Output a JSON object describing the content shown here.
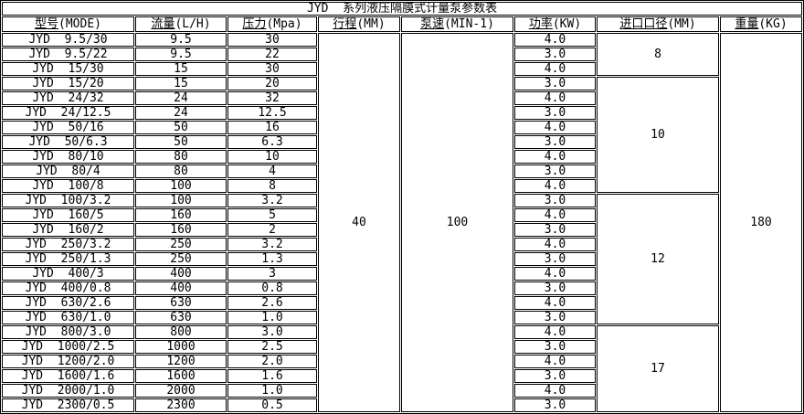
{
  "table": {
    "title": "JYD  系列液压隔膜式计量泵参数表",
    "columns": [
      {
        "key": "model",
        "label": "型号",
        "suffix": "(MODE)"
      },
      {
        "key": "flow",
        "label": "流量",
        "suffix": "(L/H)"
      },
      {
        "key": "pressure",
        "label": "压力",
        "suffix": "(Mpa)"
      },
      {
        "key": "stroke",
        "label": "行程",
        "suffix": "(MM)"
      },
      {
        "key": "pump-speed",
        "label": "泵速",
        "suffix": "(MIN-1)"
      },
      {
        "key": "power",
        "label": "功率",
        "suffix": "(KW)"
      },
      {
        "key": "inlet-diameter",
        "label": "进口口径",
        "suffix": "(MM)"
      },
      {
        "key": "weight",
        "label": "重量",
        "suffix": "(KG)"
      }
    ],
    "stroke_mm": "40",
    "pump_speed_min1": "100",
    "weight_kg": "180",
    "inlet_diameter_groups": [
      {
        "value": "8",
        "row_count": 3
      },
      {
        "value": "10",
        "row_count": 8
      },
      {
        "value": "12",
        "row_count": 9
      },
      {
        "value": "17",
        "row_count": 6
      }
    ],
    "rows": [
      {
        "model": "JYD  9.5/30",
        "flow": "9.5",
        "pressure": "30",
        "power": "4.0"
      },
      {
        "model": "JYD  9.5/22",
        "flow": "9.5",
        "pressure": "22",
        "power": "3.0"
      },
      {
        "model": "JYD  15/30",
        "flow": "15",
        "pressure": "30",
        "power": "4.0"
      },
      {
        "model": "JYD  15/20",
        "flow": "15",
        "pressure": "20",
        "power": "3.0"
      },
      {
        "model": "JYD  24/32",
        "flow": "24",
        "pressure": "32",
        "power": "4.0"
      },
      {
        "model": "JYD  24/12.5",
        "flow": "24",
        "pressure": "12.5",
        "power": "3.0"
      },
      {
        "model": "JYD  50/16",
        "flow": "50",
        "pressure": "16",
        "power": "4.0"
      },
      {
        "model": "JYD  50/6.3",
        "flow": "50",
        "pressure": "6.3",
        "power": "3.0"
      },
      {
        "model": "JYD  80/10",
        "flow": "80",
        "pressure": "10",
        "power": "4.0"
      },
      {
        "model": "JYD  80/4",
        "flow": "80",
        "pressure": "4",
        "power": "3.0"
      },
      {
        "model": "JYD  100/8",
        "flow": "100",
        "pressure": "8",
        "power": "4.0"
      },
      {
        "model": "JYD  100/3.2",
        "flow": "100",
        "pressure": "3.2",
        "power": "3.0"
      },
      {
        "model": "JYD  160/5",
        "flow": "160",
        "pressure": "5",
        "power": "4.0"
      },
      {
        "model": "JYD  160/2",
        "flow": "160",
        "pressure": "2",
        "power": "3.0"
      },
      {
        "model": "JYD  250/3.2",
        "flow": "250",
        "pressure": "3.2",
        "power": "4.0"
      },
      {
        "model": "JYD  250/1.3",
        "flow": "250",
        "pressure": "1.3",
        "power": "3.0"
      },
      {
        "model": "JYD  400/3",
        "flow": "400",
        "pressure": "3",
        "power": "4.0"
      },
      {
        "model": "JYD  400/0.8",
        "flow": "400",
        "pressure": "0.8",
        "power": "3.0"
      },
      {
        "model": "JYD  630/2.6",
        "flow": "630",
        "pressure": "2.6",
        "power": "4.0"
      },
      {
        "model": "JYD  630/1.0",
        "flow": "630",
        "pressure": "1.0",
        "power": "3.0"
      },
      {
        "model": "JYD  800/3.0",
        "flow": "800",
        "pressure": "3.0",
        "power": "4.0"
      },
      {
        "model": "JYD  1000/2.5",
        "flow": "1000",
        "pressure": "2.5",
        "power": "3.0"
      },
      {
        "model": "JYD  1200/2.0",
        "flow": "1200",
        "pressure": "2.0",
        "power": "4.0"
      },
      {
        "model": "JYD  1600/1.6",
        "flow": "1600",
        "pressure": "1.6",
        "power": "3.0"
      },
      {
        "model": "JYD  2000/1.0",
        "flow": "2000",
        "pressure": "1.0",
        "power": "4.0"
      },
      {
        "model": "JYD  2300/0.5",
        "flow": "2300",
        "pressure": "0.5",
        "power": "3.0"
      }
    ],
    "colors": {
      "border": "#000000",
      "background": "#ffffff",
      "text": "#000000"
    }
  }
}
